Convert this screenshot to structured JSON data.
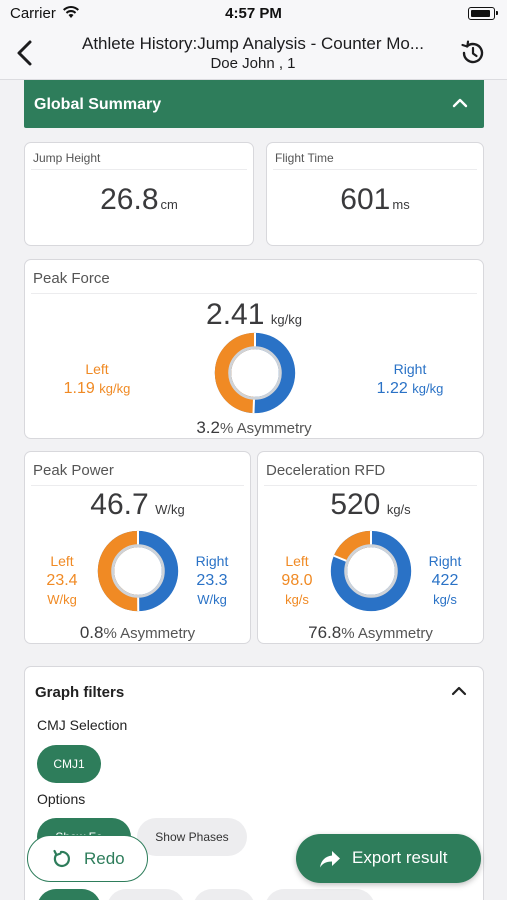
{
  "status_bar": {
    "carrier": "Carrier",
    "time": "4:57 PM"
  },
  "nav": {
    "title": "Athlete History:Jump Analysis - Counter Mo...",
    "subtitle": "Doe John , 1"
  },
  "summary": {
    "title": "Global Summary"
  },
  "jump_height": {
    "label": "Jump Height",
    "value": "26.8",
    "unit": "cm"
  },
  "flight_time": {
    "label": "Flight Time",
    "value": "601",
    "unit": "ms"
  },
  "peak_force": {
    "label": "Peak Force",
    "value": "2.41",
    "unit": "kg/kg",
    "left_label": "Left",
    "left_value": "1.19",
    "left_unit": "kg/kg",
    "right_label": "Right",
    "right_value": "1.22",
    "right_unit": "kg/kg",
    "asymmetry_value": "3.2",
    "asymmetry_text": "% Asymmetry",
    "left_share": 0.494
  },
  "peak_power": {
    "label": "Peak Power",
    "value": "46.7",
    "unit": "W/kg",
    "left_label": "Left",
    "left_value": "23.4",
    "left_unit": "W/kg",
    "right_label": "Right",
    "right_value": "23.3",
    "right_unit": "W/kg",
    "asymmetry_value": "0.8",
    "asymmetry_text": "% Asymmetry",
    "left_share": 0.501
  },
  "decel_rfd": {
    "label": "Deceleration RFD",
    "value": "520",
    "unit": "kg/s",
    "left_label": "Left",
    "left_value": "98.0",
    "left_unit": "kg/s",
    "right_label": "Right",
    "right_value": "422",
    "right_unit": "kg/s",
    "asymmetry_value": "76.8",
    "asymmetry_text": "% Asymmetry",
    "left_share": 0.188
  },
  "filters": {
    "title": "Graph filters",
    "cmj_label": "CMJ Selection",
    "cmj_chip": "CMJ1",
    "options_label": "Options",
    "option_chip_1": "Show Fo...",
    "option_chip_2": "Show Phases"
  },
  "actions": {
    "redo": "Redo",
    "export": "Export result"
  },
  "colors": {
    "accent": "#2e7d5b",
    "left": "#f08a24",
    "right": "#2a72c6"
  }
}
